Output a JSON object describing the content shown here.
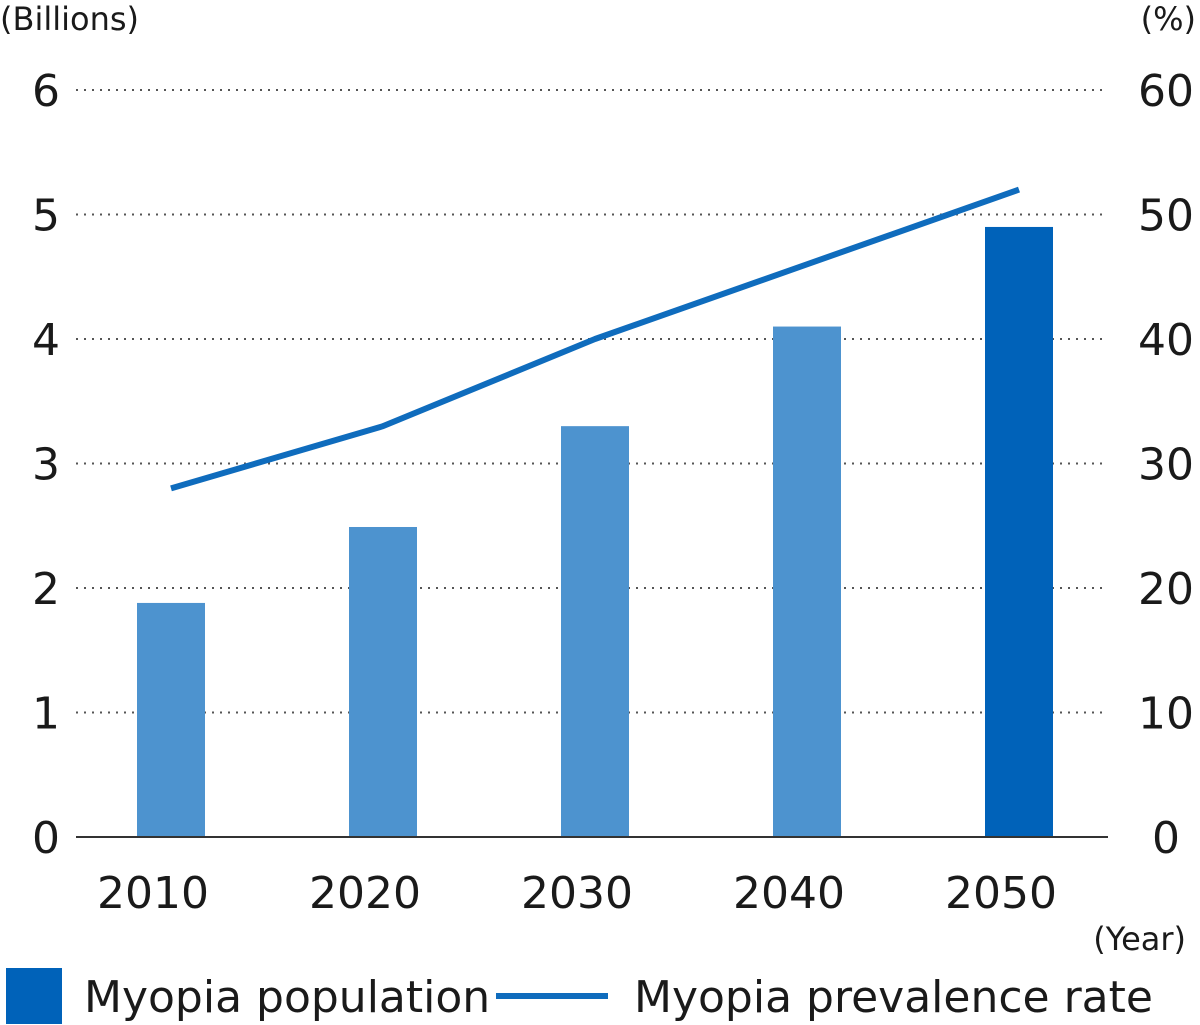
{
  "chart_data": {
    "type": "bar",
    "categories": [
      "2010",
      "2020",
      "2030",
      "2040",
      "2050"
    ],
    "series": [
      {
        "name": "Myopia population",
        "type": "bar",
        "axis": "left",
        "values": [
          1.88,
          2.49,
          3.3,
          4.1,
          4.9
        ],
        "color": "#4D93CF",
        "highlight_color": "#0062B9",
        "highlight_index": 4
      },
      {
        "name": "Myopia prevalence rate",
        "type": "line",
        "axis": "right",
        "values": [
          28,
          33,
          40,
          46,
          52
        ],
        "color": "#0F6CBD"
      }
    ],
    "left_axis": {
      "unit_label": "(Billions)",
      "ylim": [
        0,
        6
      ],
      "ticks": [
        "0",
        "1",
        "2",
        "3",
        "4",
        "5",
        "6"
      ]
    },
    "right_axis": {
      "unit_label": "(%)",
      "ylim": [
        0,
        60
      ],
      "ticks": [
        "0",
        "10",
        "20",
        "30",
        "40",
        "50",
        "60"
      ]
    },
    "x_axis": {
      "unit_label": "(Year)"
    },
    "grid": "dotted horizontal",
    "legend_position": "bottom"
  },
  "legend": {
    "population_label": "Myopia population",
    "rate_label": "Myopia prevalence rate"
  }
}
